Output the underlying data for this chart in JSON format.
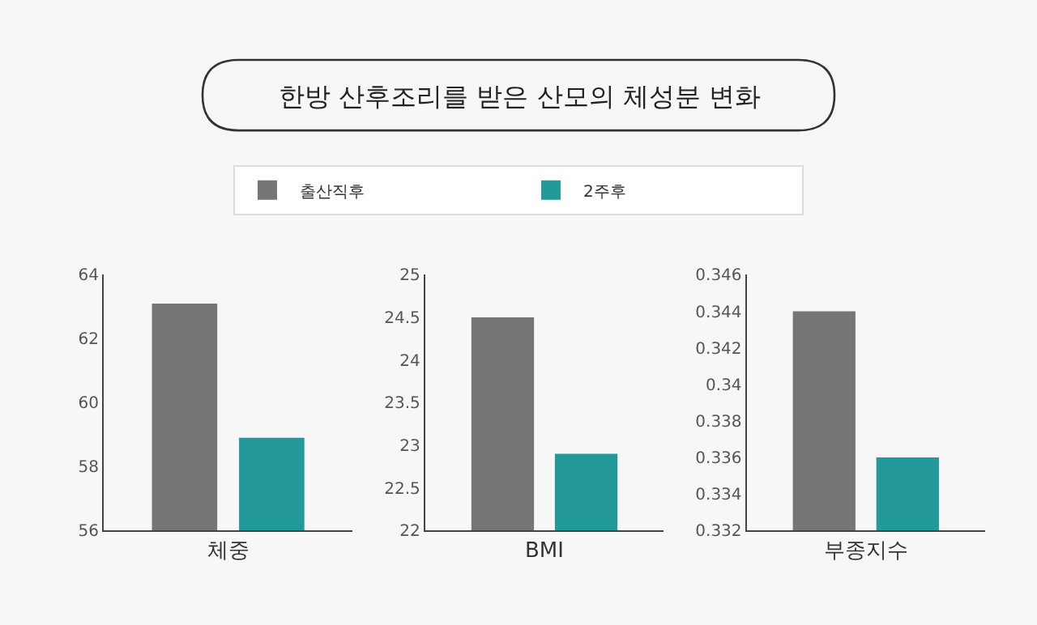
{
  "chart_data": [
    {
      "type": "bar",
      "title": "한방 산후조리를 받은 산모의 체성분 변화",
      "legend": "top",
      "categories": [
        "체중"
      ],
      "ylim": [
        56,
        64
      ],
      "yticks": [
        56,
        58,
        60,
        62,
        64
      ],
      "grid": false,
      "series": [
        {
          "name": "출산직후",
          "color": "#767676",
          "values": [
            63.1
          ]
        },
        {
          "name": "2주후",
          "color": "#23999a",
          "values": [
            58.9
          ]
        }
      ]
    },
    {
      "type": "bar",
      "legend": false,
      "categories": [
        "BMI"
      ],
      "ylim": [
        22,
        25
      ],
      "yticks": [
        22,
        22.5,
        23,
        23.5,
        24,
        24.5,
        25
      ],
      "grid": false,
      "series": [
        {
          "color": "#767676",
          "values": [
            24.5
          ]
        },
        {
          "color": "#23999a",
          "values": [
            22.9
          ]
        }
      ]
    },
    {
      "type": "bar",
      "legend": false,
      "categories": [
        "부종지수"
      ],
      "ylim": [
        0.332,
        0.346
      ],
      "yticks": [
        0.332,
        0.334,
        0.336,
        0.338,
        0.34,
        0.342,
        0.344,
        0.346
      ],
      "grid": false,
      "series": [
        {
          "color": "#767676",
          "values": [
            0.344
          ]
        },
        {
          "color": "#23999a",
          "values": [
            0.336
          ]
        }
      ]
    }
  ]
}
